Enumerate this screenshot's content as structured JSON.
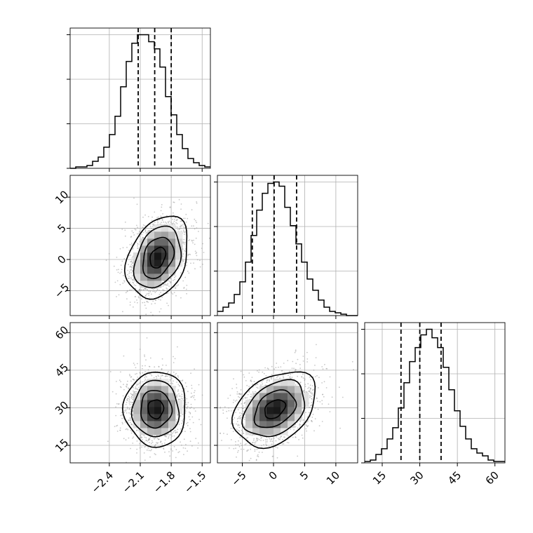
{
  "chart_data": {
    "type": "corner",
    "parameters": [
      {
        "ticks": [
          -2.4,
          -2.1,
          -1.8,
          -1.5
        ],
        "tick_labels": [
          "−2.4",
          "−2.1",
          "−1.8",
          "−1.5"
        ],
        "range": [
          -2.78,
          -1.42
        ],
        "quantiles": [
          -2.12,
          -1.96,
          -1.8
        ]
      },
      {
        "ticks": [
          -5,
          0,
          5,
          10
        ],
        "tick_labels": [
          "−5",
          "0",
          "5",
          "10"
        ],
        "range": [
          -9.0,
          13.5
        ],
        "quantiles": [
          -3.4,
          0.1,
          3.7
        ]
      },
      {
        "ticks": [
          15,
          30,
          45,
          60
        ],
        "tick_labels": [
          "15",
          "30",
          "45",
          "60"
        ],
        "range": [
          8,
          64
        ],
        "quantiles": [
          22.5,
          30.0,
          38.5
        ]
      }
    ],
    "histograms": [
      {
        "param": 0,
        "counts": [
          0,
          1,
          1,
          2,
          5,
          8,
          15,
          24,
          37,
          58,
          76,
          89,
          95,
          95,
          90,
          85,
          72,
          51,
          38,
          24,
          14,
          7,
          4,
          2,
          1
        ],
        "max_count": 95
      },
      {
        "param": 1,
        "counts": [
          3,
          6,
          9,
          15,
          24,
          38,
          57,
          75,
          87,
          94,
          95,
          92,
          77,
          64,
          51,
          38,
          26,
          18,
          11,
          6,
          3,
          2,
          1,
          0,
          0
        ],
        "max_count": 95
      },
      {
        "param": 2,
        "counts": [
          1,
          2,
          6,
          10,
          17,
          25,
          39,
          57,
          72,
          82,
          91,
          95,
          89,
          82,
          68,
          52,
          37,
          26,
          17,
          10,
          7,
          5,
          2,
          1,
          1
        ],
        "max_count": 95
      }
    ],
    "pairs": [
      {
        "x": 0,
        "y": 1,
        "center": [
          -1.93,
          0.3
        ],
        "spread": [
          0.15,
          3.3
        ],
        "correlation": 0.3
      },
      {
        "x": 0,
        "y": 2,
        "center": [
          -1.95,
          29.5
        ],
        "spread": [
          0.15,
          7.5
        ],
        "correlation": 0.0
      },
      {
        "x": 1,
        "y": 2,
        "center": [
          0.2,
          29.5
        ],
        "spread": [
          3.3,
          7.5
        ],
        "correlation": 0.35
      }
    ],
    "contour_levels": [
      0.118,
      0.393,
      0.675,
      0.865
    ],
    "grid": true,
    "colors": {
      "line": "#000000",
      "grid": "#b0b0b0",
      "points": "#9a9a9a"
    }
  }
}
